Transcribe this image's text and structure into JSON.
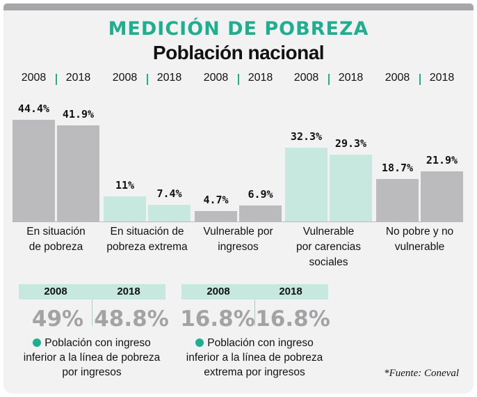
{
  "header": {
    "title": "MEDICIÓN DE POBREZA",
    "subtitle": "Población nacional"
  },
  "colors": {
    "accent": "#1fae8f",
    "gray_bar": "#bbbbbe",
    "mint_bar": "#c6e8df",
    "big_number": "#a3a3a6"
  },
  "chart_data": {
    "type": "bar",
    "title": "Población nacional",
    "categories": [
      "En situación de pobreza",
      "En situación de pobreza extrema",
      "Vulnerable por ingresos",
      "Vulnerable por carencias sociales",
      "No pobre y no vulnerable"
    ],
    "series": [
      {
        "name": "2008",
        "values": [
          44.4,
          11,
          4.7,
          32.3,
          18.7
        ]
      },
      {
        "name": "2018",
        "values": [
          41.9,
          7.4,
          6.9,
          29.3,
          21.9
        ]
      }
    ],
    "value_labels": {
      "2008": [
        "44.4%",
        "11%",
        "4.7%",
        "32.3%",
        "18.7%"
      ],
      "2018": [
        "41.9%",
        "7.4%",
        "6.9%",
        "29.3%",
        "21.9%"
      ]
    },
    "bar_colors": [
      "gray",
      "mint",
      "gray",
      "mint",
      "gray"
    ],
    "category_lines": [
      [
        "En situación",
        "de pobreza"
      ],
      [
        "En situación de",
        "pobreza extrema"
      ],
      [
        "Vulnerable por",
        "ingresos"
      ],
      [
        "Vulnerable",
        "por carencias",
        "sociales"
      ],
      [
        "No pobre y no",
        "vulnerable"
      ]
    ],
    "ylim": [
      0,
      48
    ],
    "grid": false,
    "legend": "year labels above each category"
  },
  "boxes": [
    {
      "year_a": "2008",
      "year_b": "2018",
      "value_a": "49%",
      "value_b": "48.8%",
      "note_lines": [
        "Población con ingreso",
        "inferior a la línea de pobreza",
        "por ingresos"
      ]
    },
    {
      "year_a": "2008",
      "year_b": "2018",
      "value_a": "16.8%",
      "value_b": "16.8%",
      "note_lines": [
        "Población con ingreso",
        "inferior a la línea de pobreza",
        "extrema por ingresos"
      ]
    }
  ],
  "source": "*Fuente: Coneval"
}
